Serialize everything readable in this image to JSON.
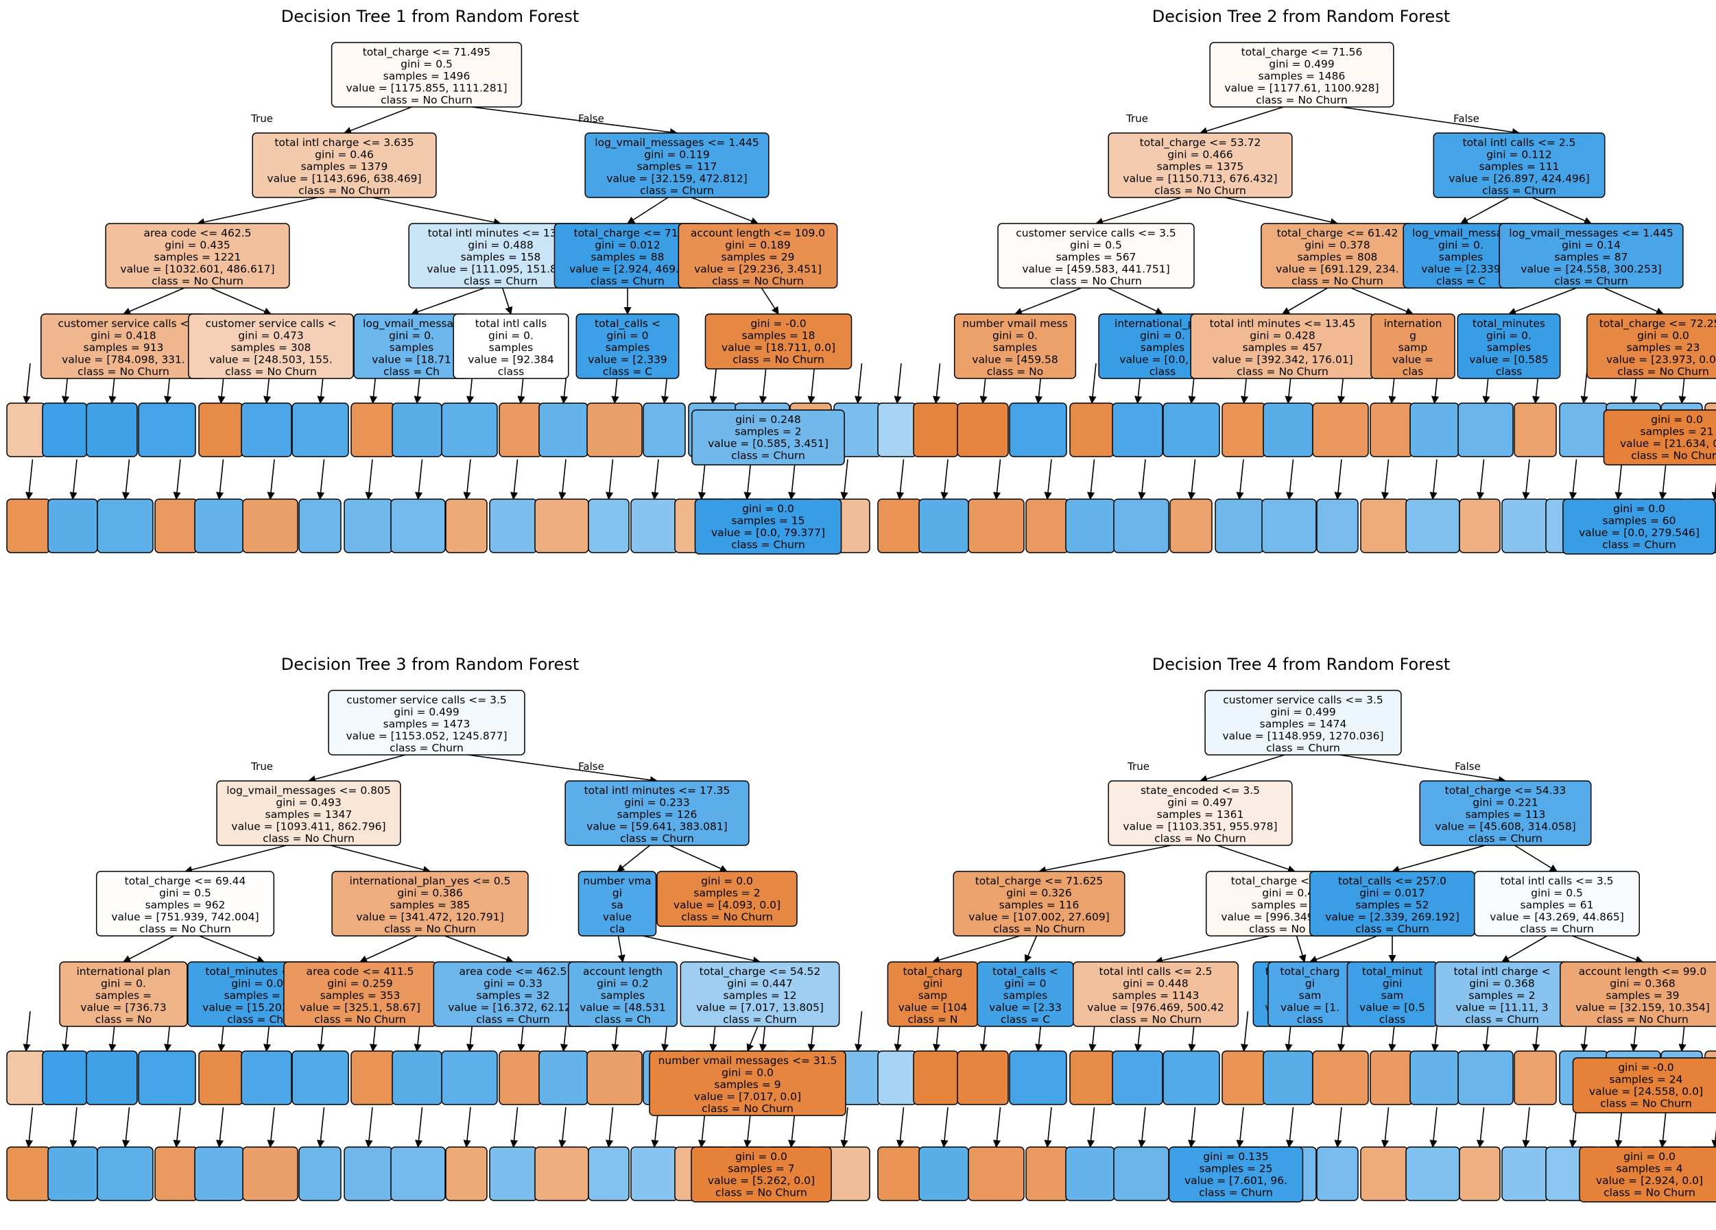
{
  "colors": {
    "no_churn": "#e58139",
    "churn": "#399de5"
  },
  "branch_labels": {
    "true": "True",
    "false": "False"
  },
  "trees": [
    {
      "title": "Decision Tree 1 from Random Forest",
      "nodes": [
        {
          "id": "t1r",
          "parent": null,
          "pure": 0.05,
          "cls": "no_churn",
          "lines": [
            "total_charge <= 71.495",
            "gini = 0.5",
            "samples = 1496",
            "value = [1175.855, 1111.281]",
            "class = No Churn"
          ]
        },
        {
          "id": "t1a",
          "parent": "t1r",
          "pure": 0.42,
          "cls": "no_churn",
          "lines": [
            "total intl charge <= 3.635",
            "gini = 0.46",
            "samples = 1379",
            "value = [1143.696, 638.469]",
            "class = No Churn"
          ]
        },
        {
          "id": "t1b",
          "parent": "t1r",
          "pure": 0.93,
          "cls": "churn",
          "lines": [
            "log_vmail_messages <= 1.445",
            "gini = 0.119",
            "samples = 117",
            "value = [32.159, 472.812]",
            "class = Churn"
          ]
        },
        {
          "id": "t1c",
          "parent": "t1a",
          "pure": 0.5,
          "cls": "no_churn",
          "lines": [
            "area code <= 462.5",
            "gini = 0.435",
            "samples = 1221",
            "value = [1032.601, 486.617]",
            "class = No Churn"
          ]
        },
        {
          "id": "t1d",
          "parent": "t1a",
          "pure": 0.27,
          "cls": "churn",
          "lines": [
            "total intl minutes <= 13.95",
            "gini = 0.488",
            "samples = 158",
            "value = [111.095, 151.852]",
            "class = Churn"
          ]
        },
        {
          "id": "t1e",
          "parent": "t1b",
          "pure": 0.99,
          "cls": "churn",
          "lines": [
            "total_charge <= 71.",
            "gini = 0.012",
            "samples = 88",
            "value = [2.924, 469.3",
            "class = Churn"
          ]
        },
        {
          "id": "t1f",
          "parent": "t1b",
          "pure": 0.88,
          "cls": "no_churn",
          "lines": [
            "account length <= 109.0",
            "gini = 0.189",
            "samples = 29",
            "value = [29.236, 3.451]",
            "class = No Churn"
          ]
        },
        {
          "id": "t1g",
          "parent": "t1c",
          "pure": 0.57,
          "cls": "no_churn",
          "lines": [
            "customer service calls <",
            "gini = 0.418",
            "samples = 913",
            "value = [784.098, 331.",
            "class = No Churn"
          ]
        },
        {
          "id": "t1h",
          "parent": "t1c",
          "pure": 0.37,
          "cls": "no_churn",
          "lines": [
            "customer service calls <",
            "gini = 0.473",
            "samples = 308",
            "value = [248.503, 155.",
            "class = No Churn"
          ]
        },
        {
          "id": "t1i",
          "parent": "t1d",
          "pure": 0.75,
          "cls": "churn",
          "lines": [
            "log_vmail_messag",
            "gini = 0.",
            "samples",
            "value = [18.71",
            "class = Ch"
          ]
        },
        {
          "id": "t1j",
          "parent": "t1d",
          "pure": 0.0,
          "cls": "no_churn",
          "lines": [
            "total intl calls",
            "gini = 0.",
            "samples",
            "value = [92.384",
            "class"
          ]
        },
        {
          "id": "t1k",
          "parent": "t1e",
          "pure": 0.98,
          "cls": "churn",
          "lines": [
            "total_calls <",
            "gini = 0",
            "samples",
            "value = [2.339",
            "class = C"
          ]
        },
        {
          "id": "t1l",
          "parent": "t1f",
          "pure": 0.95,
          "cls": "no_churn",
          "lines": [
            "gini = -0.0",
            "samples = 18",
            "value = [18.711, 0.0]",
            "class = No Churn"
          ]
        }
      ]
    },
    {
      "title": "Decision Tree 2 from Random Forest",
      "nodes": [
        {
          "id": "t2r",
          "parent": null,
          "pure": 0.05,
          "cls": "no_churn",
          "lines": [
            "total_charge <= 71.56",
            "gini = 0.499",
            "samples = 1486",
            "value = [1177.61, 1100.928]",
            "class = No Churn"
          ]
        },
        {
          "id": "t2a",
          "parent": "t2r",
          "pure": 0.41,
          "cls": "no_churn",
          "lines": [
            "total_charge <= 53.72",
            "gini = 0.466",
            "samples = 1375",
            "value = [1150.713, 676.432]",
            "class = No Churn"
          ]
        },
        {
          "id": "t2b",
          "parent": "t2r",
          "pure": 0.94,
          "cls": "churn",
          "lines": [
            "total intl calls <= 2.5",
            "gini = 0.112",
            "samples = 111",
            "value = [26.897, 424.496]",
            "class = Churn"
          ]
        },
        {
          "id": "t2c",
          "parent": "t2a",
          "pure": 0.03,
          "cls": "no_churn",
          "lines": [
            "customer service calls <= 3.5",
            "gini = 0.5",
            "samples = 567",
            "value = [459.583, 441.751]",
            "class = No Churn"
          ]
        },
        {
          "id": "t2d",
          "parent": "t2a",
          "pure": 0.66,
          "cls": "no_churn",
          "lines": [
            "total_charge <= 61.42",
            "gini = 0.378",
            "samples = 808",
            "value = [691.129, 234.",
            "class = No Churn"
          ]
        },
        {
          "id": "t2e",
          "parent": "t2b",
          "pure": 0.99,
          "cls": "churn",
          "lines": [
            "log_vmail_messag",
            "gini = 0.",
            "samples",
            "value = [2.339",
            "class = C"
          ]
        },
        {
          "id": "t2f",
          "parent": "t2b",
          "pure": 0.92,
          "cls": "churn",
          "lines": [
            "log_vmail_messages <= 1.445",
            "gini = 0.14",
            "samples = 87",
            "value = [24.558, 300.253]",
            "class = Churn"
          ]
        },
        {
          "id": "t2g",
          "parent": "t2c",
          "pure": 0.75,
          "cls": "no_churn",
          "lines": [
            "number vmail mess",
            "gini = 0.",
            "samples",
            "value = [459.58",
            "class = No"
          ]
        },
        {
          "id": "t2h",
          "parent": "t2c",
          "pure": 1.0,
          "cls": "churn",
          "lines": [
            "international_plan",
            "gini = 0.",
            "samples",
            "value = [0.0, 32",
            "class"
          ]
        },
        {
          "id": "t2i",
          "parent": "t2d",
          "pure": 0.55,
          "cls": "no_churn",
          "lines": [
            "total intl minutes <= 13.45",
            "gini = 0.428",
            "samples = 457",
            "value = [392.342, 176.01]",
            "class = No Churn"
          ]
        },
        {
          "id": "t2j",
          "parent": "t2d",
          "pure": 0.8,
          "cls": "no_churn",
          "lines": [
            "internation",
            "g",
            "samp",
            "value =",
            "clas"
          ]
        },
        {
          "id": "t2k",
          "parent": "t2f",
          "pure": 1.0,
          "cls": "churn",
          "lines": [
            "total_minutes",
            "gini = 0.",
            "samples",
            "value = [0.585",
            "class"
          ]
        },
        {
          "id": "t2l",
          "parent": "t2f",
          "pure": 0.95,
          "cls": "no_churn",
          "lines": [
            "total_charge <= 72.255",
            "gini = 0.0",
            "samples = 23",
            "value = [23.973, 0.0]",
            "class = No Churn"
          ]
        }
      ]
    },
    {
      "title": "Decision Tree 3 from Random Forest",
      "nodes": [
        {
          "id": "t3r",
          "parent": null,
          "pure": 0.06,
          "cls": "churn",
          "lines": [
            "customer service calls <= 3.5",
            "gini = 0.499",
            "samples = 1473",
            "value = [1153.052, 1245.877]",
            "class = Churn"
          ]
        },
        {
          "id": "t3a",
          "parent": "t3r",
          "pure": 0.2,
          "cls": "no_churn",
          "lines": [
            "log_vmail_messages <= 0.805",
            "gini = 0.493",
            "samples = 1347",
            "value = [1093.411, 862.796]",
            "class = No Churn"
          ]
        },
        {
          "id": "t3b",
          "parent": "t3r",
          "pure": 0.83,
          "cls": "churn",
          "lines": [
            "total intl minutes <= 17.35",
            "gini = 0.233",
            "samples = 126",
            "value = [59.641, 383.081]",
            "class = Churn"
          ]
        },
        {
          "id": "t3c",
          "parent": "t3a",
          "pure": 0.01,
          "cls": "no_churn",
          "lines": [
            "total_charge <= 69.44",
            "gini = 0.5",
            "samples = 962",
            "value = [751.939, 742.004]",
            "class = No Churn"
          ]
        },
        {
          "id": "t3d",
          "parent": "t3a",
          "pure": 0.65,
          "cls": "no_churn",
          "lines": [
            "international_plan_yes <= 0.5",
            "gini = 0.386",
            "samples = 385",
            "value = [341.472, 120.791]",
            "class = No Churn"
          ]
        },
        {
          "id": "t3e",
          "parent": "t3b",
          "pure": 0.9,
          "cls": "churn",
          "lines": [
            "number vma",
            "gi",
            "sa",
            "value",
            "cla"
          ]
        },
        {
          "id": "t3f",
          "parent": "t3b",
          "pure": 0.95,
          "cls": "no_churn",
          "lines": [
            "gini = 0.0",
            "samples = 2",
            "value = [4.093, 0.0]",
            "class = No Churn"
          ]
        },
        {
          "id": "t3g",
          "parent": "t3c",
          "pure": 0.6,
          "cls": "no_churn",
          "lines": [
            "international plan",
            "gini = 0.",
            "samples =",
            "value = [736.73",
            "class = No"
          ]
        },
        {
          "id": "t3h",
          "parent": "t3c",
          "pure": 0.97,
          "cls": "churn",
          "lines": [
            "total_minutes <= 614",
            "gini = 0.058",
            "samples = 105",
            "value = [15.203, 490.0",
            "class = Churn"
          ]
        },
        {
          "id": "t3i",
          "parent": "t3d",
          "pure": 0.82,
          "cls": "no_churn",
          "lines": [
            "area code <= 411.5",
            "gini = 0.259",
            "samples = 353",
            "value = [325.1, 58.67]",
            "class = No Churn"
          ]
        },
        {
          "id": "t3j",
          "parent": "t3d",
          "pure": 0.74,
          "cls": "churn",
          "lines": [
            "area code <= 462.5",
            "gini = 0.33",
            "samples = 32",
            "value = [16.372, 62.121",
            "class = Churn"
          ]
        },
        {
          "id": "t3k",
          "parent": "t3e",
          "pure": 0.8,
          "cls": "churn",
          "lines": [
            "account length",
            "gini = 0.2",
            "samples",
            "value = [48.531",
            "class = Ch"
          ]
        },
        {
          "id": "t3l",
          "parent": "t3e",
          "pure": 0.49,
          "cls": "churn",
          "lines": [
            "total_charge <= 54.52",
            "gini = 0.447",
            "samples = 12",
            "value = [7.017, 13.805]",
            "class = Churn"
          ]
        },
        {
          "id": "t3m",
          "parent": "t3l",
          "pure": 0.97,
          "cls": "no_churn",
          "lines": [
            "number vmail messages <= 31.5",
            "gini = 0.0",
            "samples = 9",
            "value = [7.017, 0.0]",
            "class = No Churn"
          ]
        }
      ]
    },
    {
      "title": "Decision Tree 4 from Random Forest",
      "nodes": [
        {
          "id": "t4r",
          "parent": null,
          "pure": 0.09,
          "cls": "churn",
          "lines": [
            "customer service calls <= 3.5",
            "gini = 0.499",
            "samples = 1474",
            "value = [1148.959, 1270.036]",
            "class = Churn"
          ]
        },
        {
          "id": "t4a",
          "parent": "t4r",
          "pure": 0.14,
          "cls": "no_churn",
          "lines": [
            "state_encoded <= 3.5",
            "gini = 0.497",
            "samples = 1361",
            "value = [1103.351, 955.978]",
            "class = No Churn"
          ]
        },
        {
          "id": "t4b",
          "parent": "t4r",
          "pure": 0.86,
          "cls": "churn",
          "lines": [
            "total_charge <= 54.33",
            "gini = 0.221",
            "samples = 113",
            "value = [45.608, 314.058]",
            "class = Churn"
          ]
        },
        {
          "id": "t4c",
          "parent": "t4a",
          "pure": 0.74,
          "cls": "no_churn",
          "lines": [
            "total_charge <= 71.625",
            "gini = 0.326",
            "samples = 116",
            "value = [107.002, 27.609]",
            "class = No Churn"
          ]
        },
        {
          "id": "t4d",
          "parent": "t4a",
          "pure": 0.07,
          "cls": "no_churn",
          "lines": [
            "total_charge <= 71.085",
            "gini = 0.499",
            "samples = 1245",
            "value = [996.349, 928.368]",
            "class = No Churn"
          ]
        },
        {
          "id": "t4e",
          "parent": "t4b",
          "pure": 0.99,
          "cls": "churn",
          "lines": [
            "total_calls <= 257.0",
            "gini = 0.017",
            "samples = 52",
            "value = [2.339, 269.192]",
            "class = Churn"
          ]
        },
        {
          "id": "t4f",
          "parent": "t4b",
          "pure": 0.03,
          "cls": "churn",
          "lines": [
            "total intl calls <= 3.5",
            "gini = 0.5",
            "samples = 61",
            "value = [43.269, 44.865]",
            "class = Churn"
          ]
        },
        {
          "id": "t4g",
          "parent": "t4c",
          "pure": 0.95,
          "cls": "no_churn",
          "lines": [
            "total_charg",
            "gini",
            "samp",
            "value = [104",
            "class = N"
          ]
        },
        {
          "id": "t4h",
          "parent": "t4c",
          "pure": 0.95,
          "cls": "churn",
          "lines": [
            "total_calls <",
            "gini = 0",
            "samples",
            "value = [2.33",
            "class = C"
          ]
        },
        {
          "id": "t4i",
          "parent": "t4d",
          "pure": 0.5,
          "cls": "no_churn",
          "lines": [
            "total intl calls <= 2.5",
            "gini = 0.448",
            "samples = 1143",
            "value = [976.469, 500.42",
            "class = No Churn"
          ]
        },
        {
          "id": "t4j",
          "parent": "t4d",
          "pure": 0.98,
          "cls": "churn",
          "lines": [
            "total_charge <",
            "gini = 0.0",
            "samples",
            "value = [19.88",
            "class = Ch"
          ]
        },
        {
          "id": "t4k",
          "parent": "t4e",
          "pure": 0.9,
          "cls": "churn",
          "lines": [
            "total_charg",
            "gi",
            "sam",
            "value = [1.",
            "class"
          ]
        },
        {
          "id": "t4l",
          "parent": "t4e",
          "pure": 0.98,
          "cls": "churn",
          "lines": [
            "total_minut",
            "gini",
            "sam",
            "value = [0.5",
            "class"
          ]
        },
        {
          "id": "t4m",
          "parent": "t4f",
          "pure": 0.6,
          "cls": "churn",
          "lines": [
            "total intl charge <",
            "gini = 0.368",
            "samples = 2",
            "value = [11.11, 3",
            "class = Churn"
          ]
        },
        {
          "id": "t4n",
          "parent": "t4f",
          "pure": 0.7,
          "cls": "no_churn",
          "lines": [
            "account length <= 99.0",
            "gini = 0.368",
            "samples = 39",
            "value = [32.159, 10.354]",
            "class = No Churn"
          ]
        }
      ]
    }
  ],
  "callouts": [
    {
      "tree": 0,
      "cls": "churn",
      "pure": 0.72,
      "lines": [
        "gini = 0.248",
        "samples = 2",
        "value = [0.585, 3.451]",
        "class = Churn"
      ]
    },
    {
      "tree": 0,
      "cls": "churn",
      "pure": 1.0,
      "lines": [
        "gini = 0.0",
        "samples = 15",
        "value = [0.0, 79.377]",
        "class = Churn"
      ]
    },
    {
      "tree": 1,
      "cls": "no_churn",
      "pure": 1.0,
      "lines": [
        "gini = 0.0",
        "samples = 21",
        "value = [21.634, 0.0]",
        "class = No Churn"
      ]
    },
    {
      "tree": 1,
      "cls": "churn",
      "pure": 1.0,
      "lines": [
        "gini = 0.0",
        "samples = 60",
        "value = [0.0, 279.546]",
        "class = Churn"
      ]
    },
    {
      "tree": 2,
      "cls": "no_churn",
      "pure": 1.0,
      "lines": [
        "gini = 0.0",
        "samples = 7",
        "value = [5.262, 0.0]",
        "class = No Churn"
      ]
    },
    {
      "tree": 3,
      "cls": "no_churn",
      "pure": 1.0,
      "lines": [
        "gini = -0.0",
        "samples = 24",
        "value = [24.558, 0.0]",
        "class = No Churn"
      ]
    },
    {
      "tree": 3,
      "cls": "churn",
      "pure": 0.98,
      "lines": [
        "gini = 0.135",
        "samples = 25",
        "value = [7.601, 96.",
        "class = Churn"
      ]
    },
    {
      "tree": 3,
      "cls": "no_churn",
      "pure": 1.0,
      "lines": [
        "gini = 0.0",
        "samples = 4",
        "value = [2.924, 0.0]",
        "class = No Churn"
      ]
    }
  ]
}
